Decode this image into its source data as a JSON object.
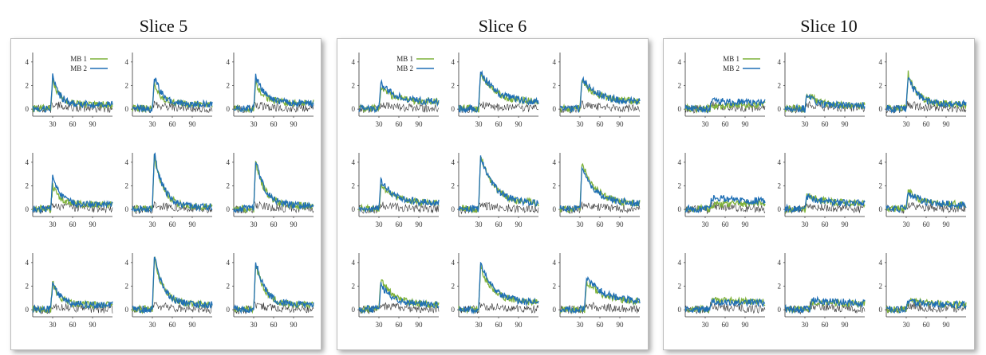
{
  "colors": {
    "mb1": "#7fb23a",
    "mb2": "#1f6fb5",
    "baseline": "#333333"
  },
  "chart_data": {
    "type": "line",
    "legend_placement": "top-left of first subplot in each slice",
    "series_names": [
      "MB 1",
      "MB 2"
    ],
    "xticks": [
      "30",
      "60",
      "90"
    ],
    "yticks": [
      "0",
      "2",
      "4"
    ],
    "xlim": [
      0,
      120
    ],
    "ylim": [
      -0.6,
      4.8
    ],
    "slices": [
      {
        "title": "Slice 5",
        "subplots": [
          {
            "peak_x": 30,
            "mb1_peak": 2.6,
            "mb2_peak": 2.8,
            "base": 0.4,
            "decay": 10
          },
          {
            "peak_x": 33,
            "mb1_peak": 2.0,
            "mb2_peak": 2.8,
            "base": 0.4,
            "decay": 12
          },
          {
            "peak_x": 33,
            "mb1_peak": 2.2,
            "mb2_peak": 2.8,
            "base": 0.5,
            "decay": 14
          },
          {
            "peak_x": 30,
            "mb1_peak": 2.0,
            "mb2_peak": 2.8,
            "base": 0.4,
            "decay": 12
          },
          {
            "peak_x": 33,
            "mb1_peak": 4.6,
            "mb2_peak": 4.8,
            "base": 0.2,
            "decay": 14
          },
          {
            "peak_x": 33,
            "mb1_peak": 4.0,
            "mb2_peak": 4.3,
            "base": 0.3,
            "decay": 14
          },
          {
            "peak_x": 30,
            "mb1_peak": 2.3,
            "mb2_peak": 2.3,
            "base": 0.4,
            "decay": 12
          },
          {
            "peak_x": 33,
            "mb1_peak": 4.4,
            "mb2_peak": 4.5,
            "base": 0.4,
            "decay": 14
          },
          {
            "peak_x": 33,
            "mb1_peak": 4.0,
            "mb2_peak": 4.2,
            "base": 0.4,
            "decay": 14
          }
        ]
      },
      {
        "title": "Slice 6",
        "subplots": [
          {
            "peak_x": 33,
            "mb1_peak": 1.8,
            "mb2_peak": 2.2,
            "base": 0.6,
            "decay": 22
          },
          {
            "peak_x": 33,
            "mb1_peak": 3.0,
            "mb2_peak": 3.3,
            "base": 0.6,
            "decay": 22
          },
          {
            "peak_x": 33,
            "mb1_peak": 2.4,
            "mb2_peak": 2.6,
            "base": 0.6,
            "decay": 24
          },
          {
            "peak_x": 33,
            "mb1_peak": 2.2,
            "mb2_peak": 2.5,
            "base": 0.5,
            "decay": 22
          },
          {
            "peak_x": 33,
            "mb1_peak": 4.6,
            "mb2_peak": 4.6,
            "base": 0.5,
            "decay": 20
          },
          {
            "peak_x": 33,
            "mb1_peak": 4.0,
            "mb2_peak": 3.7,
            "base": 0.5,
            "decay": 20
          },
          {
            "peak_x": 33,
            "mb1_peak": 2.6,
            "mb2_peak": 2.1,
            "base": 0.4,
            "decay": 20
          },
          {
            "peak_x": 33,
            "mb1_peak": 3.6,
            "mb2_peak": 3.9,
            "base": 0.6,
            "decay": 20
          },
          {
            "peak_x": 40,
            "mb1_peak": 2.4,
            "mb2_peak": 2.9,
            "base": 0.7,
            "decay": 24
          }
        ]
      },
      {
        "title": "Slice 10",
        "subplots": [
          {
            "peak_x": 40,
            "mb1_peak": 0.2,
            "mb2_peak": 0.7,
            "base": 0.5,
            "decay": 60
          },
          {
            "peak_x": 33,
            "mb1_peak": 1.5,
            "mb2_peak": 1.2,
            "base": 0.3,
            "decay": 14
          },
          {
            "peak_x": 33,
            "mb1_peak": 3.0,
            "mb2_peak": 2.8,
            "base": 0.4,
            "decay": 14
          },
          {
            "peak_x": 40,
            "mb1_peak": 0.4,
            "mb2_peak": 1.0,
            "base": 0.6,
            "decay": 60
          },
          {
            "peak_x": 33,
            "mb1_peak": 1.2,
            "mb2_peak": 1.1,
            "base": 0.5,
            "decay": 24
          },
          {
            "peak_x": 33,
            "mb1_peak": 1.6,
            "mb2_peak": 1.5,
            "base": 0.4,
            "decay": 20
          },
          {
            "peak_x": 40,
            "mb1_peak": 0.9,
            "mb2_peak": 0.7,
            "base": 0.5,
            "decay": 60
          },
          {
            "peak_x": 40,
            "mb1_peak": 0.6,
            "mb2_peak": 0.8,
            "base": 0.5,
            "decay": 60
          },
          {
            "peak_x": 33,
            "mb1_peak": 0.8,
            "mb2_peak": 0.7,
            "base": 0.4,
            "decay": 30
          }
        ]
      }
    ]
  }
}
